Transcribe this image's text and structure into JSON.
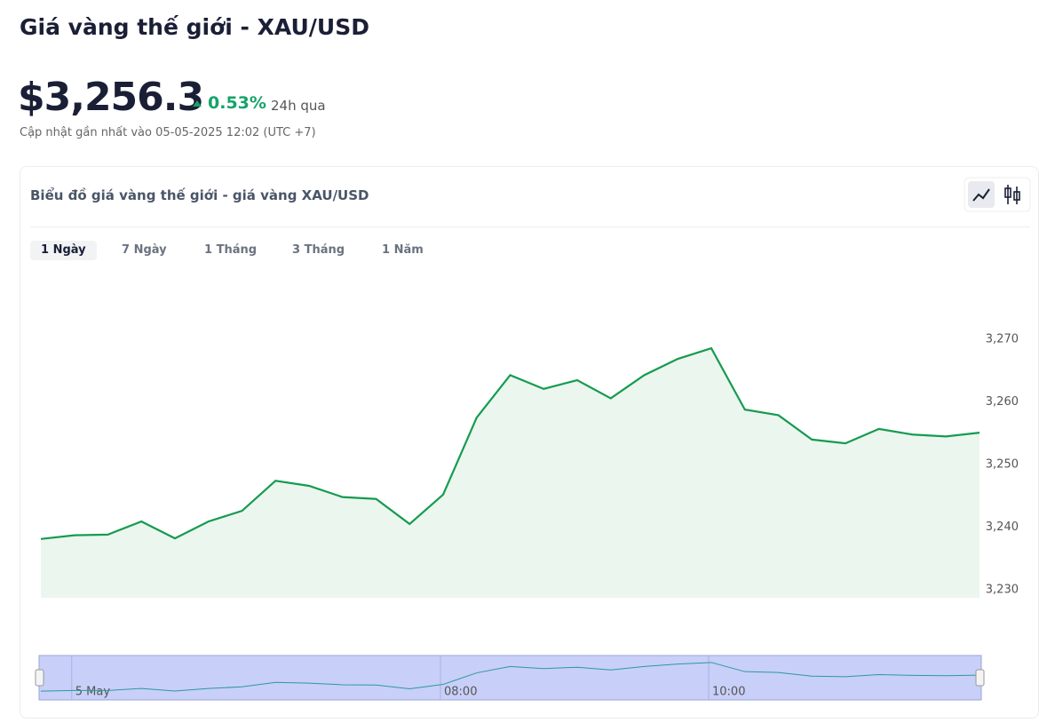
{
  "header": {
    "title": "Giá vàng thế giới - XAU/USD",
    "price": "$3,256.3",
    "change": "0.53%",
    "period": "24h qua",
    "updated": "Cập nhật gần nhất vào 05-05-2025 12:02 (UTC +7)"
  },
  "card": {
    "title": "Biểu đồ giá vàng thế giới - giá vàng XAU/USD",
    "tabs": [
      "1 Ngày",
      "7 Ngày",
      "1 Tháng",
      "3 Tháng",
      "1 Năm"
    ]
  },
  "chart_data": {
    "type": "area",
    "color": "#169b4f",
    "fill": "#ebf6ef",
    "categories": [
      null,
      "5 May",
      null,
      null,
      null,
      null,
      null,
      null,
      null,
      null,
      null,
      null,
      "08:00",
      null,
      null,
      null,
      null,
      null,
      null,
      null,
      "10:00",
      null,
      null,
      null,
      null,
      null,
      null,
      null,
      null
    ],
    "values": [
      3238.1,
      3238.7,
      3238.8,
      3240.9,
      3238.2,
      3240.9,
      3242.6,
      3247.4,
      3246.6,
      3244.8,
      3244.5,
      3240.5,
      3245.2,
      3257.5,
      3264.3,
      3262.1,
      3263.5,
      3260.6,
      3264.3,
      3266.9,
      3268.6,
      3258.8,
      3257.9,
      3254.0,
      3253.4,
      3255.7,
      3254.8,
      3254.5,
      3255.1
    ],
    "ylim": [
      3228.7,
      3276
    ],
    "yticks": [
      {
        "value": 3230,
        "label": "3,230"
      },
      {
        "value": 3240,
        "label": "3,240"
      },
      {
        "value": 3250,
        "label": "3,250"
      },
      {
        "value": 3260,
        "label": "3,260"
      },
      {
        "value": 3270,
        "label": "3,270"
      }
    ]
  }
}
